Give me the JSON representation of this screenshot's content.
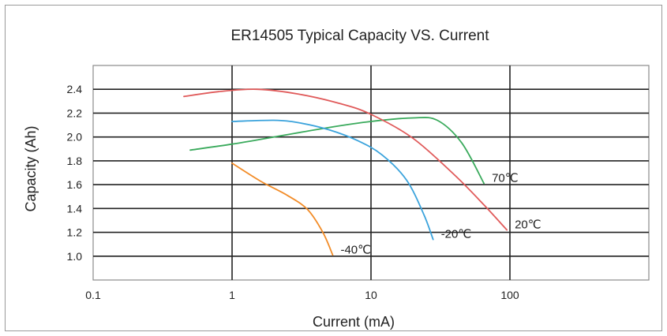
{
  "chart_data": {
    "type": "line",
    "title": "ER14505 Typical Capacity VS. Current",
    "xlabel": "Current (mA)",
    "ylabel": "Capacity (Ah)",
    "x_scale": "log",
    "xlim": [
      0.1,
      1000
    ],
    "ylim": [
      0.8,
      2.6
    ],
    "x_ticks": [
      0.1,
      1,
      10,
      100
    ],
    "x_tick_labels": [
      "0.1",
      "1",
      "10",
      "100"
    ],
    "y_ticks": [
      1.0,
      1.2,
      1.4,
      1.6,
      1.8,
      2.0,
      2.2,
      2.4
    ],
    "y_tick_labels": [
      "1.0",
      "1.2",
      "1.4",
      "1.6",
      "1.8",
      "2.0",
      "2.2",
      "2.4"
    ],
    "grid": true,
    "legend": "none",
    "series": [
      {
        "name": "70℃",
        "color": "#3aaa5c",
        "x": [
          0.5,
          1,
          2,
          5,
          10,
          20,
          30,
          45,
          65
        ],
        "y": [
          1.89,
          1.94,
          2.0,
          2.08,
          2.13,
          2.16,
          2.14,
          1.95,
          1.61
        ]
      },
      {
        "name": "20℃",
        "color": "#e05a5a",
        "x": [
          0.45,
          0.8,
          1.5,
          3,
          6,
          10,
          20,
          40,
          65,
          95
        ],
        "y": [
          2.34,
          2.38,
          2.4,
          2.36,
          2.28,
          2.19,
          1.99,
          1.68,
          1.43,
          1.22
        ]
      },
      {
        "name": "-20℃",
        "color": "#3ba3dc",
        "x": [
          1,
          2,
          3,
          5,
          8,
          12,
          18,
          24,
          28
        ],
        "y": [
          2.13,
          2.14,
          2.12,
          2.06,
          1.97,
          1.85,
          1.64,
          1.35,
          1.14
        ]
      },
      {
        "name": "-40℃",
        "color": "#f28c28",
        "x": [
          1,
          1.6,
          2.5,
          3.5,
          4.5,
          5.3
        ],
        "y": [
          1.78,
          1.63,
          1.51,
          1.39,
          1.2,
          1.01
        ]
      }
    ]
  }
}
